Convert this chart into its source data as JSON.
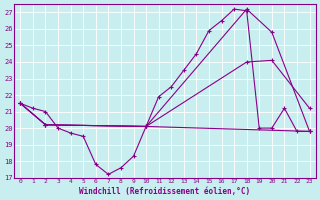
{
  "xlabel": "Windchill (Refroidissement éolien,°C)",
  "background_color": "#c8eef0",
  "line_color": "#880088",
  "ylim": [
    17,
    27.5
  ],
  "xlim": [
    -0.5,
    23.5
  ],
  "yticks": [
    17,
    18,
    19,
    20,
    21,
    22,
    23,
    24,
    25,
    26,
    27
  ],
  "xticks": [
    0,
    1,
    2,
    3,
    4,
    5,
    6,
    7,
    8,
    9,
    10,
    11,
    12,
    13,
    14,
    15,
    16,
    17,
    18,
    19,
    20,
    21,
    22,
    23
  ],
  "series": [
    {
      "x": [
        0,
        1,
        2,
        3,
        4,
        5,
        6,
        7,
        8,
        9,
        10,
        11,
        12,
        13,
        14,
        15,
        16,
        17,
        18,
        19,
        20,
        21,
        22,
        23
      ],
      "y": [
        21.5,
        21.2,
        21.0,
        20.0,
        19.7,
        19.5,
        17.8,
        17.2,
        17.6,
        18.3,
        20.1,
        21.9,
        22.5,
        23.5,
        24.5,
        25.9,
        26.5,
        27.2,
        27.1,
        20.0,
        20.0,
        21.2,
        19.8,
        19.8
      ]
    },
    {
      "x": [
        0,
        2,
        10,
        23
      ],
      "y": [
        21.5,
        20.2,
        20.1,
        19.8
      ]
    },
    {
      "x": [
        0,
        2,
        10,
        18,
        20,
        23
      ],
      "y": [
        21.5,
        20.2,
        20.1,
        24.0,
        24.1,
        21.2
      ]
    },
    {
      "x": [
        0,
        2,
        10,
        18,
        20,
        23
      ],
      "y": [
        21.5,
        20.2,
        20.1,
        27.2,
        25.8,
        19.8
      ]
    }
  ]
}
